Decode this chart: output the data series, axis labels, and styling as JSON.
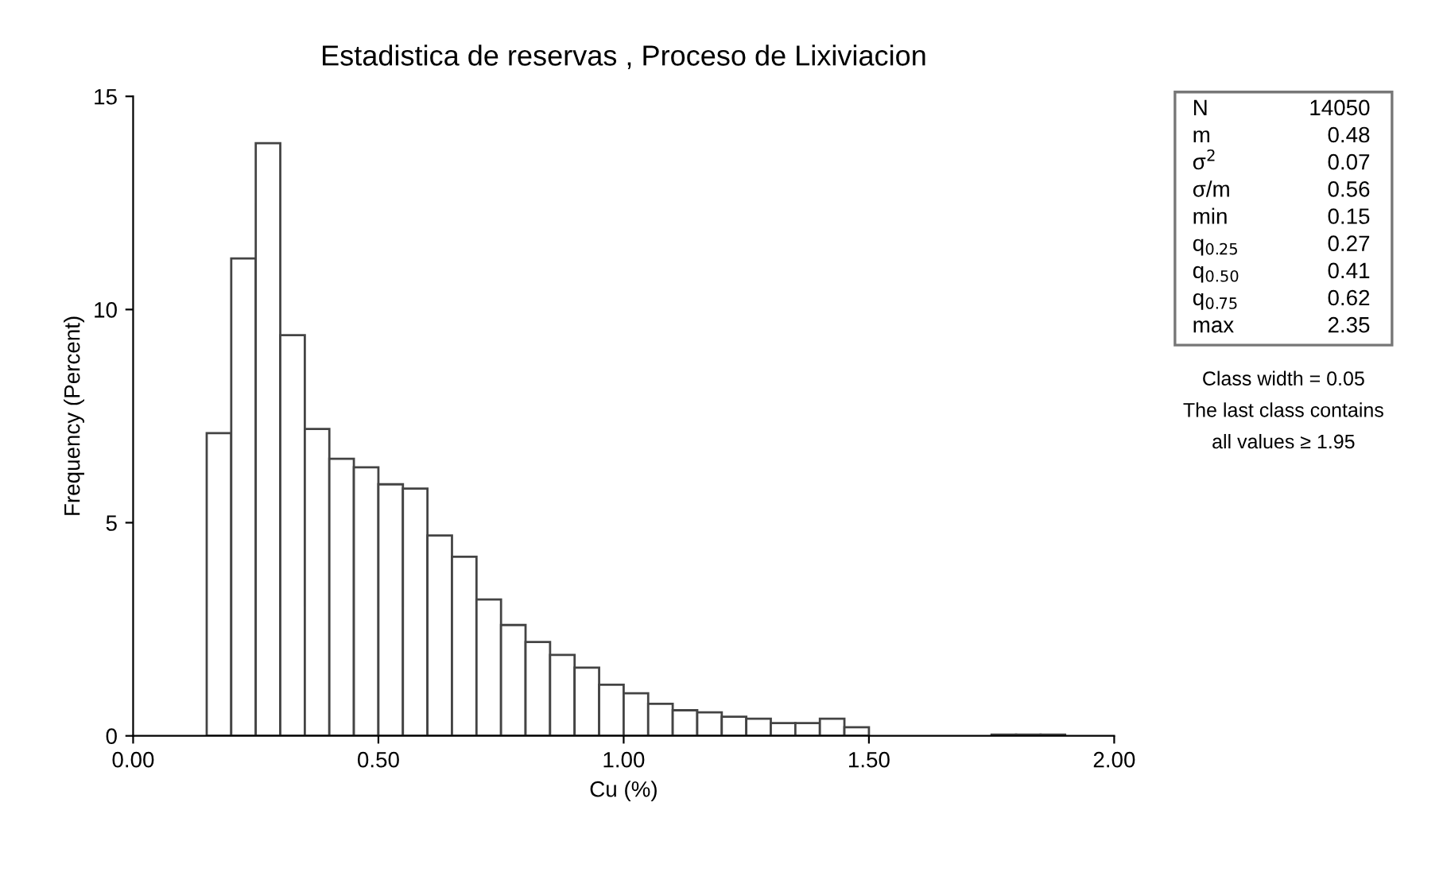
{
  "chart_data": {
    "type": "histogram",
    "title": "Estadistica de reservas , Proceso de Lixiviacion",
    "xlabel": "Cu (%)",
    "ylabel": "Frequency (Percent)",
    "bins": [
      0.15,
      0.2,
      0.25,
      0.3,
      0.35,
      0.4,
      0.45,
      0.5,
      0.55,
      0.6,
      0.65,
      0.7,
      0.75,
      0.8,
      0.85,
      0.9,
      0.95,
      1.0,
      1.05,
      1.1,
      1.15,
      1.2,
      1.25,
      1.3,
      1.35,
      1.4,
      1.45,
      1.5,
      1.55,
      1.6,
      1.65,
      1.7,
      1.75,
      1.8,
      1.85,
      1.9,
      1.95,
      2.0
    ],
    "values": [
      7.1,
      11.2,
      13.9,
      9.4,
      7.2,
      6.5,
      6.3,
      5.9,
      5.8,
      4.7,
      4.2,
      3.2,
      2.6,
      2.2,
      1.9,
      1.6,
      1.2,
      1.0,
      0.75,
      0.6,
      0.55,
      0.45,
      0.4,
      0.3,
      0.3,
      0.4,
      0.2,
      null,
      null,
      null,
      null,
      null,
      0.03,
      0.03,
      0.03,
      null,
      null
    ],
    "color": "#ffffff",
    "xlim": [
      0,
      2
    ],
    "xticks": [
      {
        "value": 0,
        "label": "0.00"
      },
      {
        "value": 0.5,
        "label": "0.50"
      },
      {
        "value": 1.0,
        "label": "1.00"
      },
      {
        "value": 1.5,
        "label": "1.50"
      },
      {
        "value": 2.0,
        "label": "2.00"
      }
    ],
    "ylim": [
      0,
      15
    ],
    "yticks": [
      0,
      5,
      10,
      15
    ],
    "grid": false,
    "annotations": [
      "N",
      "14050",
      "m",
      "0.48",
      "σ$^{2}$",
      "0.07",
      "σ/m",
      "0.56",
      "min",
      "0.15",
      "q$_{0.25}$",
      "0.27",
      "q$_{0.50}$",
      "0.41",
      "q$_{0.75}$",
      "0.62",
      "max",
      "2.35",
      "Class width = 0.05",
      "The last class contains",
      "all values ≥ 1.95"
    ]
  }
}
